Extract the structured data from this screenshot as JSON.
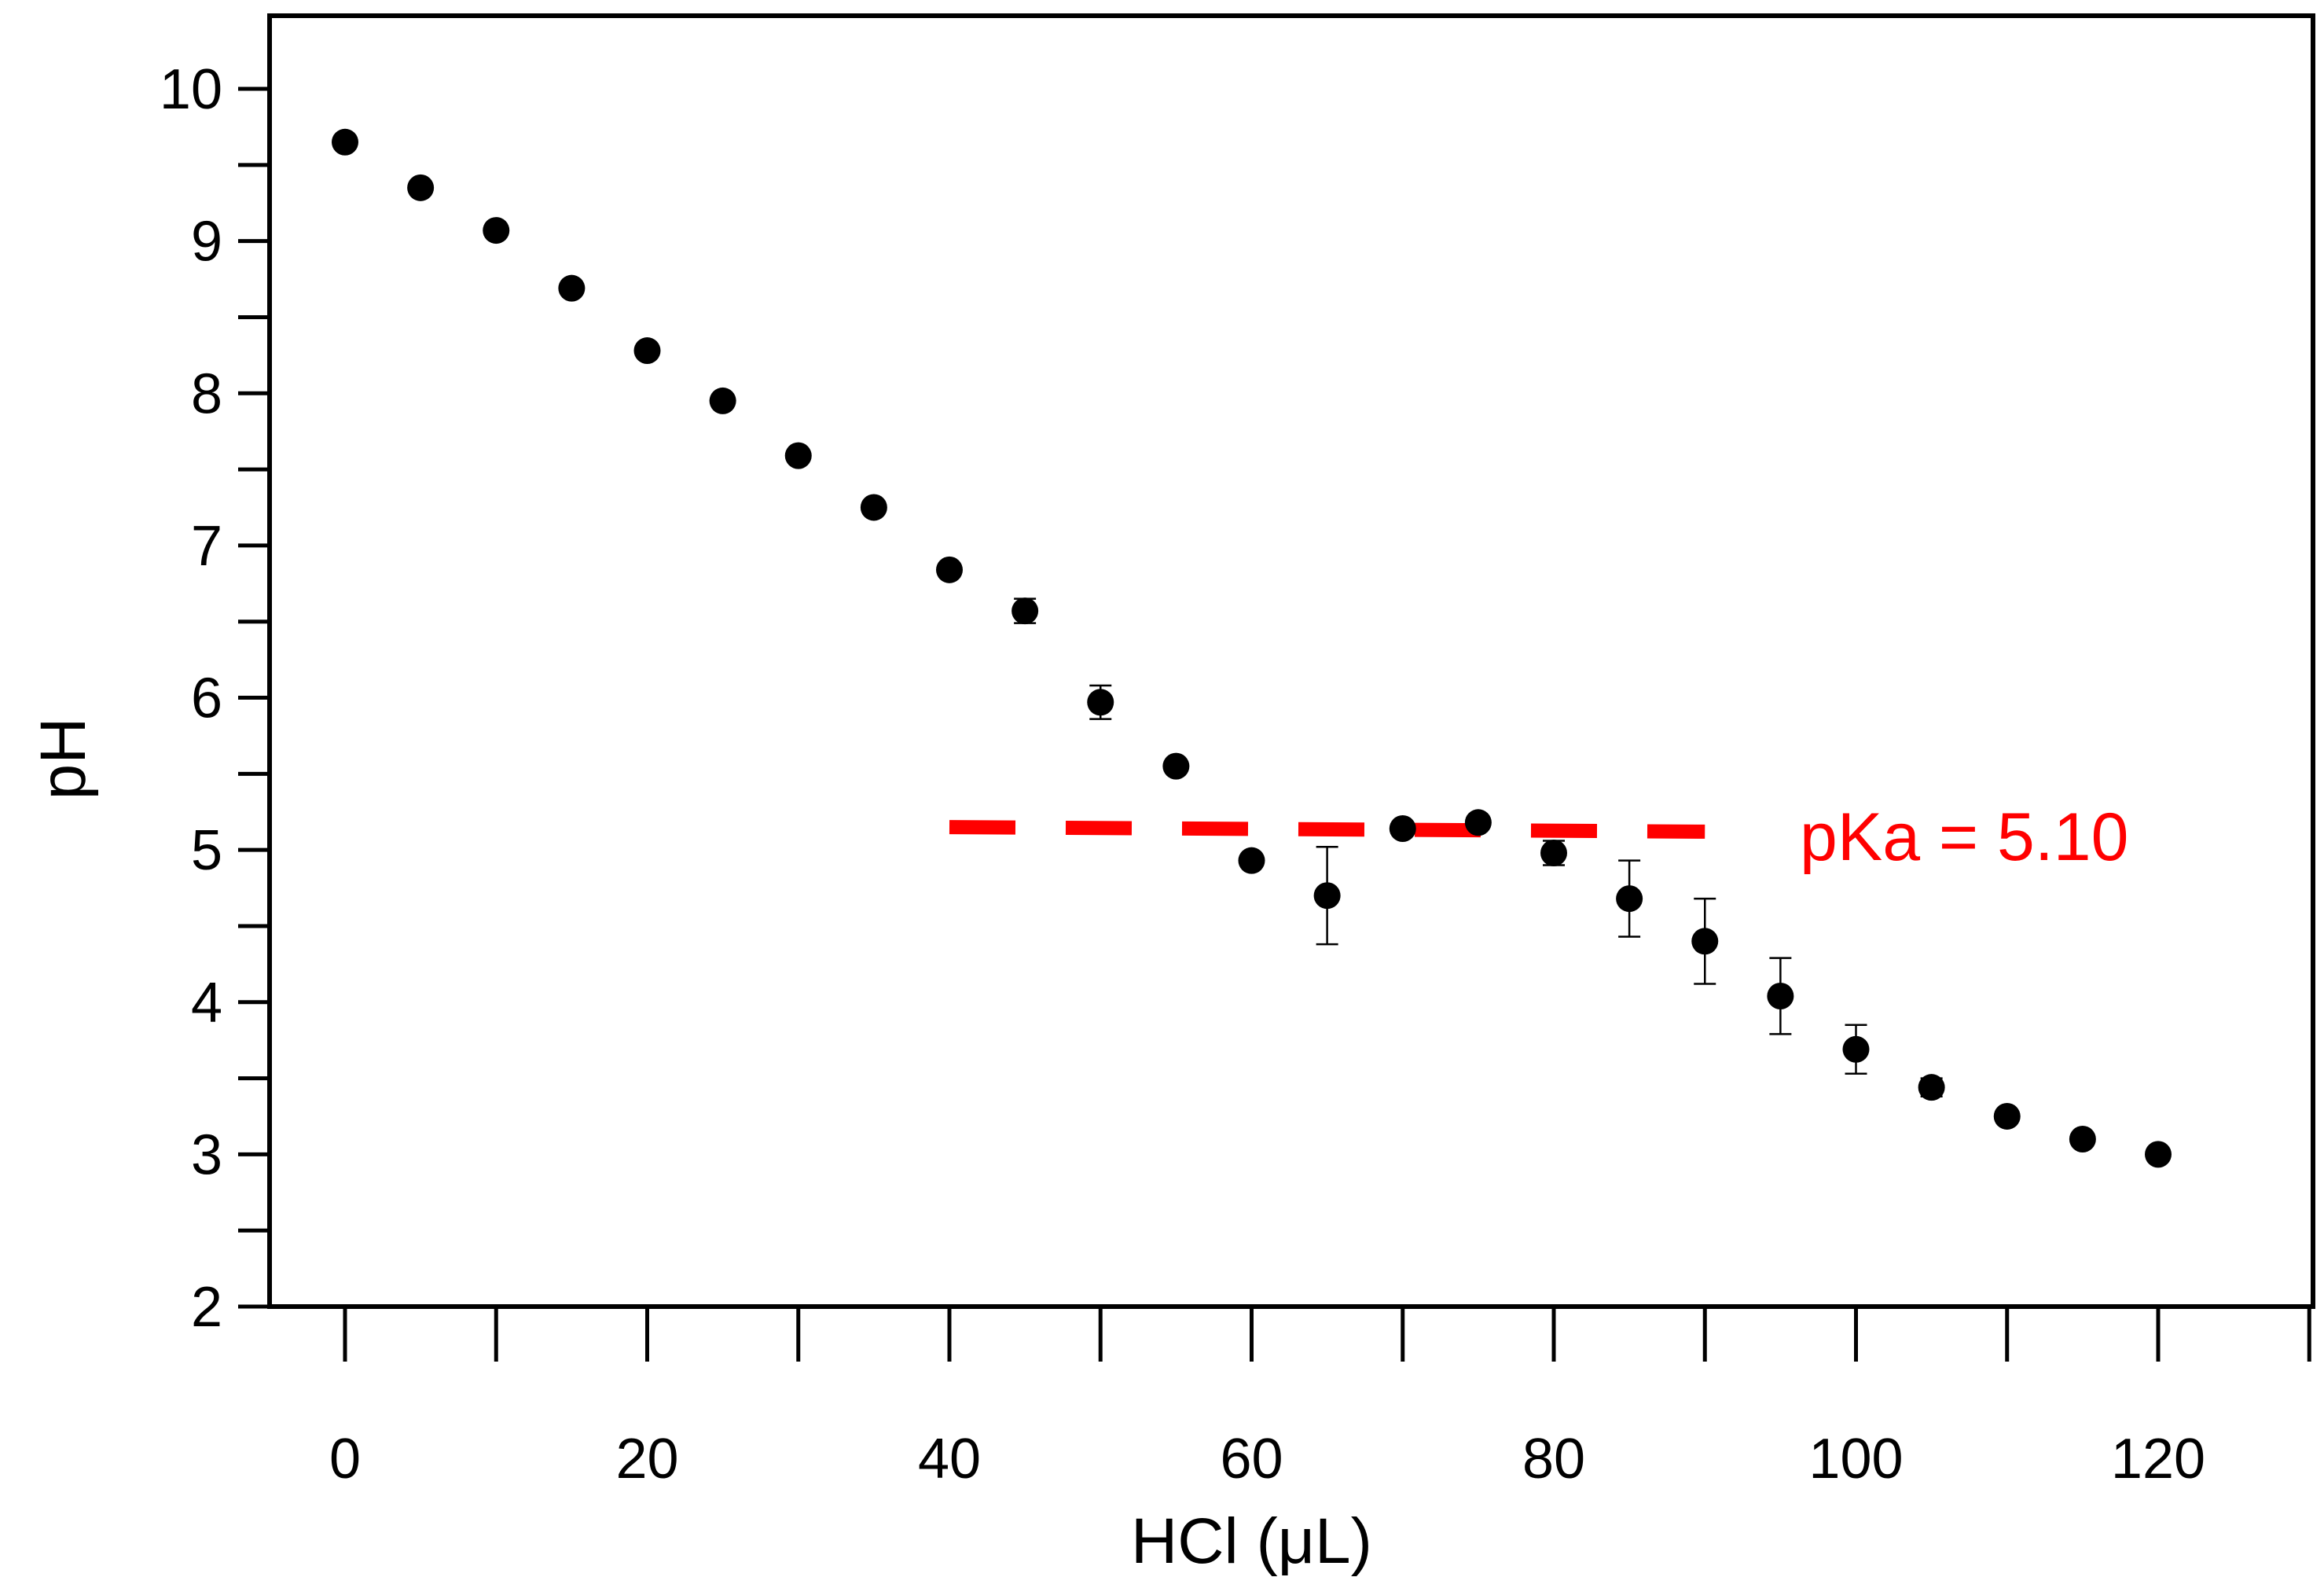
{
  "chart_data": {
    "type": "scatter",
    "title": "",
    "xlabel": "HCl (μL)",
    "ylabel": "pH",
    "xlim": [
      -10,
      130
    ],
    "ylim": [
      2,
      10.5
    ],
    "x_ticks": [
      "0",
      "20",
      "40",
      "60",
      "80",
      "100",
      "120"
    ],
    "y_ticks": [
      "2",
      "3",
      "4",
      "5",
      "6",
      "7",
      "8",
      "9",
      "10"
    ],
    "grid": false,
    "series": [
      {
        "name": "pH",
        "marker": "filled-circle",
        "color": "#000000",
        "points": [
          {
            "x": 0,
            "y": 9.65,
            "err": 0.0
          },
          {
            "x": 5,
            "y": 9.35,
            "err": 0.0
          },
          {
            "x": 10,
            "y": 9.07,
            "err": 0.0
          },
          {
            "x": 15,
            "y": 8.69,
            "err": 0.0
          },
          {
            "x": 20,
            "y": 8.28,
            "err": 0.0
          },
          {
            "x": 25,
            "y": 7.95,
            "err": 0.0
          },
          {
            "x": 30,
            "y": 7.59,
            "err": 0.0
          },
          {
            "x": 35,
            "y": 7.25,
            "err": 0.0
          },
          {
            "x": 40,
            "y": 6.84,
            "err": 0.03
          },
          {
            "x": 45,
            "y": 6.57,
            "err": 0.08
          },
          {
            "x": 50,
            "y": 5.97,
            "err": 0.11
          },
          {
            "x": 55,
            "y": 5.55,
            "err": 0.0
          },
          {
            "x": 60,
            "y": 4.93,
            "err": 0.0
          },
          {
            "x": 65,
            "y": 4.7,
            "err": 0.32
          },
          {
            "x": 70,
            "y": 5.14,
            "err": 0.03
          },
          {
            "x": 75,
            "y": 5.18,
            "err": 0.0
          },
          {
            "x": 80,
            "y": 4.98,
            "err": 0.08
          },
          {
            "x": 85,
            "y": 4.68,
            "err": 0.25
          },
          {
            "x": 90,
            "y": 4.4,
            "err": 0.28
          },
          {
            "x": 95,
            "y": 4.04,
            "err": 0.25
          },
          {
            "x": 100,
            "y": 3.69,
            "err": 0.16
          },
          {
            "x": 105,
            "y": 3.44,
            "err": 0.06
          },
          {
            "x": 110,
            "y": 3.25,
            "err": 0.03
          },
          {
            "x": 115,
            "y": 3.1,
            "err": 0.0
          },
          {
            "x": 120,
            "y": 3.0,
            "err": 0.0
          }
        ]
      }
    ],
    "reference_line": {
      "label": "pKa = 5.10",
      "style": "dashed",
      "color": "#ff0000",
      "x_start": 40,
      "x_end": 90,
      "y_start": 5.15,
      "y_end": 5.12
    }
  }
}
